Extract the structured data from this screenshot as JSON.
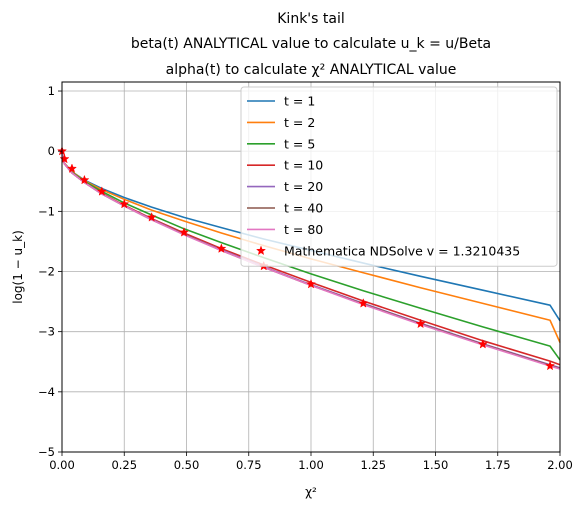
{
  "chart_data": {
    "type": "line",
    "title_lines": [
      "Kink's tail",
      "beta(t) ANALYTICAL value to calculate u_k = u/Beta",
      "alpha(t) to calculate χ² ANALYTICAL value"
    ],
    "xlabel": "χ²",
    "ylabel": "log(1 − u_k)",
    "xlim": [
      0,
      2
    ],
    "ylim": [
      -5,
      1.15
    ],
    "xticks": [
      0.0,
      0.25,
      0.5,
      0.75,
      1.0,
      1.25,
      1.5,
      1.75,
      2.0
    ],
    "xtick_labels": [
      "0.00",
      "0.25",
      "0.50",
      "0.75",
      "1.00",
      "1.25",
      "1.50",
      "1.75",
      "2.00"
    ],
    "yticks": [
      1,
      0,
      -1,
      -2,
      -3,
      -4,
      -5
    ],
    "ytick_labels": [
      "1",
      "0",
      "−1",
      "−2",
      "−3",
      "−4",
      "−5"
    ],
    "grid": true,
    "legend_position": "top-right",
    "x": [
      0.0,
      0.0025,
      0.01,
      0.04,
      0.09,
      0.16,
      0.25,
      0.36,
      0.49,
      0.64,
      0.81,
      1.0,
      1.21,
      1.44,
      1.69,
      1.96,
      2.0
    ],
    "series": [
      {
        "name": "t = 1",
        "color": "#1f77b4",
        "style": "line",
        "values": [
          0.0,
          -0.12,
          -0.2,
          -0.34,
          -0.48,
          -0.62,
          -0.77,
          -0.93,
          -1.1,
          -1.27,
          -1.46,
          -1.65,
          -1.86,
          -2.08,
          -2.31,
          -2.56,
          -2.82
        ]
      },
      {
        "name": "t = 2",
        "color": "#ff7f0e",
        "style": "line",
        "values": [
          0.0,
          -0.12,
          -0.2,
          -0.34,
          -0.49,
          -0.64,
          -0.8,
          -0.98,
          -1.16,
          -1.36,
          -1.57,
          -1.79,
          -2.02,
          -2.27,
          -2.53,
          -2.81,
          -3.18
        ]
      },
      {
        "name": "t = 5",
        "color": "#2ca02c",
        "style": "line",
        "values": [
          0.0,
          -0.12,
          -0.21,
          -0.35,
          -0.5,
          -0.67,
          -0.86,
          -1.06,
          -1.29,
          -1.52,
          -1.77,
          -2.04,
          -2.32,
          -2.61,
          -2.92,
          -3.24,
          -3.47
        ]
      },
      {
        "name": "t = 10",
        "color": "#d62728",
        "style": "line",
        "values": [
          0.0,
          -0.12,
          -0.21,
          -0.36,
          -0.52,
          -0.7,
          -0.9,
          -1.12,
          -1.36,
          -1.62,
          -1.89,
          -2.18,
          -2.49,
          -2.81,
          -3.15,
          -3.49,
          -3.55
        ]
      },
      {
        "name": "t = 20",
        "color": "#9467bd",
        "style": "line",
        "values": [
          0.0,
          -0.12,
          -0.21,
          -0.36,
          -0.52,
          -0.71,
          -0.91,
          -1.13,
          -1.38,
          -1.64,
          -1.92,
          -2.22,
          -2.53,
          -2.86,
          -3.2,
          -3.55,
          -3.6
        ]
      },
      {
        "name": "t = 40",
        "color": "#8c564b",
        "style": "line",
        "values": [
          0.0,
          -0.12,
          -0.21,
          -0.36,
          -0.52,
          -0.71,
          -0.91,
          -1.14,
          -1.38,
          -1.65,
          -1.93,
          -2.23,
          -2.54,
          -2.87,
          -3.21,
          -3.56,
          -3.61
        ]
      },
      {
        "name": "t = 80",
        "color": "#e377c2",
        "style": "line",
        "values": [
          0.0,
          -0.12,
          -0.21,
          -0.36,
          -0.52,
          -0.71,
          -0.91,
          -1.14,
          -1.39,
          -1.65,
          -1.93,
          -2.23,
          -2.55,
          -2.88,
          -3.22,
          -3.57,
          -3.62
        ]
      }
    ],
    "markers": {
      "name": "Mathematica NDSolve v = 1.3210435",
      "color": "#ff0000",
      "style": "star",
      "x": [
        0.0,
        0.01,
        0.04,
        0.09,
        0.16,
        0.25,
        0.36,
        0.49,
        0.64,
        0.81,
        1.0,
        1.21,
        1.44,
        1.69,
        1.96
      ],
      "values": [
        0.0,
        -0.13,
        -0.29,
        -0.48,
        -0.67,
        -0.88,
        -1.1,
        -1.35,
        -1.62,
        -1.91,
        -2.21,
        -2.53,
        -2.87,
        -3.21,
        -3.57
      ]
    }
  }
}
